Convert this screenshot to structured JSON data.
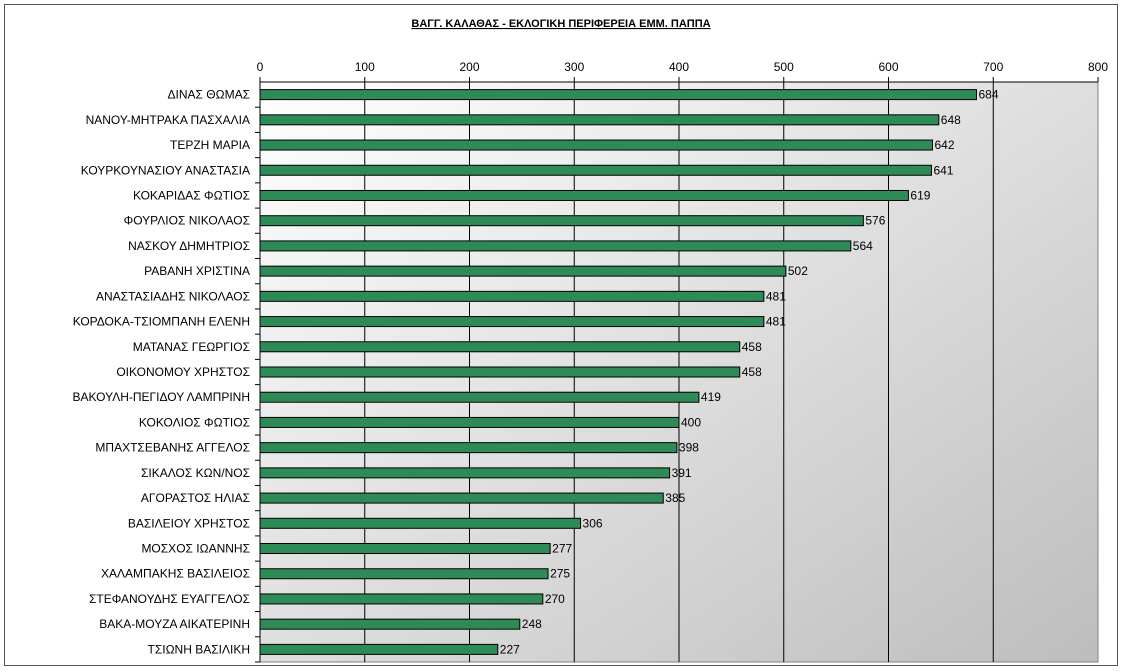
{
  "chart_data": {
    "type": "bar",
    "orientation": "horizontal",
    "title": "ΒΑΓΓ. ΚΑΛΑΘΑΣ - ΕΚΛΟΓΙΚΗ ΠΕΡΙΦΕΡΕΙΑ ΕΜΜ. ΠΑΠΠΑ",
    "xlabel": "",
    "ylabel": "",
    "xlim": [
      0,
      800
    ],
    "x_ticks": [
      "0",
      "100",
      "200",
      "300",
      "400",
      "500",
      "600",
      "700",
      "800"
    ],
    "x_axis_position": "top",
    "grid": true,
    "legend": "none",
    "categories": [
      "ΔΙΝΑΣ ΘΩΜΑΣ",
      "ΝΑΝΟΥ-ΜΗΤΡΑΚΑ ΠΑΣΧΑΛΙΑ",
      "ΤΕΡΖΗ ΜΑΡΙΑ",
      "ΚΟΥΡΚΟΥΝΑΣΙΟΥ ΑΝΑΣΤΑΣΙΑ",
      "ΚΟΚΑΡΙΔΑΣ ΦΩΤΙΟΣ",
      "ΦΟΥΡΛΙΟΣ ΝΙΚΟΛΑΟΣ",
      "ΝΑΣΚΟΥ ΔΗΜΗΤΡΙΟΣ",
      "ΡΑΒΑΝΗ ΧΡΙΣΤΙΝΑ",
      "ΑΝΑΣΤΑΣΙΑΔΗΣ ΝΙΚΟΛΑΟΣ",
      "ΚΟΡΔΟΚΑ-ΤΣΙΟΜΠΑΝΗ ΕΛΕΝΗ",
      "ΜΑΤΑΝΑΣ ΓΕΩΡΓΙΟΣ",
      "ΟΙΚΟΝΟΜΟΥ ΧΡΗΣΤΟΣ",
      "ΒΑΚΟΥΛΗ-ΠΕΓΙΔΟΥ ΛΑΜΠΡΙΝΗ",
      "ΚΟΚΟΛΙΟΣ ΦΩΤΙΟΣ",
      "ΜΠΑΧΤΣΕΒΑΝΗΣ ΑΓΓΕΛΟΣ",
      "ΣΙΚΑΛΟΣ ΚΩΝ/ΝΟΣ",
      "ΑΓΟΡΑΣΤΟΣ ΗΛΙΑΣ",
      "ΒΑΣΙΛΕΙΟΥ ΧΡΗΣΤΟΣ",
      "ΜΟΣΧΟΣ ΙΩΑΝΝΗΣ",
      "ΧΑΛΑΜΠΑΚΗΣ ΒΑΣΙΛΕΙΟΣ",
      "ΣΤΕΦΑΝΟΥΔΗΣ ΕΥΑΓΓΕΛΟΣ",
      "ΒΑΚΑ-ΜΟΥΖΑ ΑΙΚΑΤΕΡΙΝΗ",
      "ΤΣΙΩΝΗ ΒΑΣΙΛΙΚΗ"
    ],
    "values": [
      684,
      648,
      642,
      641,
      619,
      576,
      564,
      502,
      481,
      481,
      458,
      458,
      419,
      400,
      398,
      391,
      385,
      306,
      277,
      275,
      270,
      248,
      227
    ],
    "colors": {
      "bar_fill": "#2e8b57",
      "bar_stroke": "#000000",
      "plot_gradient_start": "#ffffff",
      "plot_gradient_end": "#bdbdbd",
      "gridline": "#000000"
    }
  }
}
